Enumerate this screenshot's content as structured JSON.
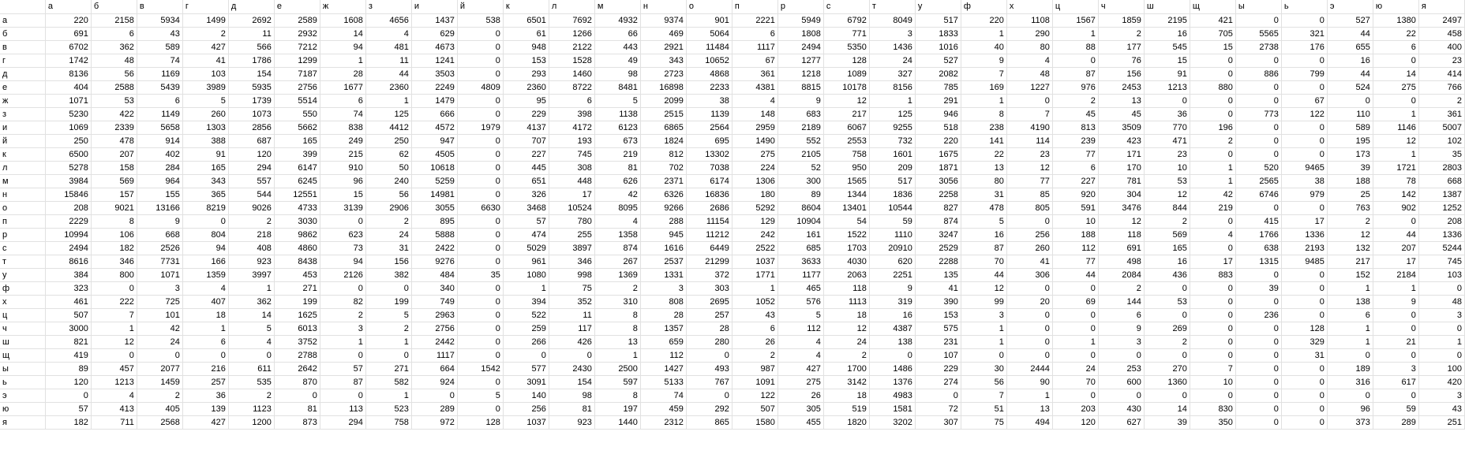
{
  "sheet": {
    "columns": [
      "а",
      "б",
      "в",
      "г",
      "д",
      "е",
      "ж",
      "з",
      "и",
      "й",
      "к",
      "л",
      "м",
      "н",
      "о",
      "п",
      "р",
      "с",
      "т",
      "у",
      "ф",
      "х",
      "ц",
      "ч",
      "ш",
      "щ",
      "ы",
      "ь",
      "э",
      "ю",
      "я"
    ],
    "rows": [
      {
        "label": "а",
        "values": [
          "220",
          "2158",
          "5934",
          "1499",
          "2692",
          "2589",
          "1608",
          "4656",
          "1437",
          "538",
          "6501",
          "7692",
          "4932",
          "9374",
          "901",
          "2221",
          "5949",
          "6792",
          "8049",
          "517",
          "220",
          "1108",
          "1567",
          "1859",
          "2195",
          "421",
          "0",
          "0",
          "527",
          "1380",
          "2497"
        ]
      },
      {
        "label": "б",
        "values": [
          "691",
          "6",
          "43",
          "2",
          "11",
          "2932",
          "14",
          "4",
          "629",
          "0",
          "61",
          "1266",
          "66",
          "469",
          "5064",
          "6",
          "1808",
          "771",
          "3",
          "1833",
          "1",
          "290",
          "1",
          "2",
          "16",
          "705",
          "5565",
          "321",
          "44",
          "22",
          "458"
        ]
      },
      {
        "label": "в",
        "values": [
          "6702",
          "362",
          "589",
          "427",
          "566",
          "7212",
          "94",
          "481",
          "4673",
          "0",
          "948",
          "2122",
          "443",
          "2921",
          "11484",
          "1117",
          "2494",
          "5350",
          "1436",
          "1016",
          "40",
          "80",
          "88",
          "177",
          "545",
          "15",
          "2738",
          "176",
          "655",
          "6",
          "400"
        ]
      },
      {
        "label": "г",
        "values": [
          "1742",
          "48",
          "74",
          "41",
          "1786",
          "1299",
          "1",
          "11",
          "1241",
          "0",
          "153",
          "1528",
          "49",
          "343",
          "10652",
          "67",
          "1277",
          "128",
          "24",
          "527",
          "9",
          "4",
          "0",
          "76",
          "15",
          "0",
          "0",
          "0",
          "16",
          "0",
          "23"
        ]
      },
      {
        "label": "д",
        "values": [
          "8136",
          "56",
          "1169",
          "103",
          "154",
          "7187",
          "28",
          "44",
          "3503",
          "0",
          "293",
          "1460",
          "98",
          "2723",
          "4868",
          "361",
          "1218",
          "1089",
          "327",
          "2082",
          "7",
          "48",
          "87",
          "156",
          "91",
          "0",
          "886",
          "799",
          "44",
          "14",
          "414"
        ]
      },
      {
        "label": "е",
        "values": [
          "404",
          "2588",
          "5439",
          "3989",
          "5935",
          "2756",
          "1677",
          "2360",
          "2249",
          "4809",
          "2360",
          "8722",
          "8481",
          "16898",
          "2233",
          "4381",
          "8815",
          "10178",
          "8156",
          "785",
          "169",
          "1227",
          "976",
          "2453",
          "1213",
          "880",
          "0",
          "0",
          "524",
          "275",
          "766"
        ]
      },
      {
        "label": "ж",
        "values": [
          "1071",
          "53",
          "6",
          "5",
          "1739",
          "5514",
          "6",
          "1",
          "1479",
          "0",
          "95",
          "6",
          "5",
          "2099",
          "38",
          "4",
          "9",
          "12",
          "1",
          "291",
          "1",
          "0",
          "2",
          "13",
          "0",
          "0",
          "0",
          "67",
          "0",
          "0",
          "2"
        ]
      },
      {
        "label": "з",
        "values": [
          "5230",
          "422",
          "1149",
          "260",
          "1073",
          "550",
          "74",
          "125",
          "666",
          "0",
          "229",
          "398",
          "1138",
          "2515",
          "1139",
          "148",
          "683",
          "217",
          "125",
          "946",
          "8",
          "7",
          "45",
          "45",
          "36",
          "0",
          "773",
          "122",
          "110",
          "1",
          "361"
        ]
      },
      {
        "label": "и",
        "values": [
          "1069",
          "2339",
          "5658",
          "1303",
          "2856",
          "5662",
          "838",
          "4412",
          "4572",
          "1979",
          "4137",
          "4172",
          "6123",
          "6865",
          "2564",
          "2959",
          "2189",
          "6067",
          "9255",
          "518",
          "238",
          "4190",
          "813",
          "3509",
          "770",
          "196",
          "0",
          "0",
          "589",
          "1146",
          "5007"
        ]
      },
      {
        "label": "й",
        "values": [
          "250",
          "478",
          "914",
          "388",
          "687",
          "165",
          "249",
          "250",
          "947",
          "0",
          "707",
          "193",
          "673",
          "1824",
          "695",
          "1490",
          "552",
          "2553",
          "732",
          "220",
          "141",
          "114",
          "239",
          "423",
          "471",
          "2",
          "0",
          "0",
          "195",
          "12",
          "102"
        ]
      },
      {
        "label": "к",
        "values": [
          "6500",
          "207",
          "402",
          "91",
          "120",
          "399",
          "215",
          "62",
          "4505",
          "0",
          "227",
          "745",
          "219",
          "812",
          "13302",
          "275",
          "2105",
          "758",
          "1601",
          "1675",
          "22",
          "23",
          "77",
          "171",
          "23",
          "0",
          "0",
          "0",
          "173",
          "1",
          "35"
        ]
      },
      {
        "label": "л",
        "values": [
          "5278",
          "158",
          "284",
          "165",
          "294",
          "6147",
          "910",
          "50",
          "10618",
          "0",
          "445",
          "308",
          "81",
          "702",
          "7038",
          "224",
          "52",
          "950",
          "209",
          "1871",
          "13",
          "12",
          "6",
          "170",
          "10",
          "1",
          "520",
          "9465",
          "39",
          "1721",
          "2803"
        ]
      },
      {
        "label": "м",
        "values": [
          "3984",
          "569",
          "964",
          "343",
          "557",
          "6245",
          "96",
          "240",
          "5259",
          "0",
          "651",
          "448",
          "626",
          "2371",
          "6174",
          "1306",
          "300",
          "1565",
          "517",
          "3056",
          "80",
          "77",
          "227",
          "781",
          "53",
          "1",
          "2565",
          "38",
          "188",
          "78",
          "668"
        ]
      },
      {
        "label": "н",
        "values": [
          "15846",
          "157",
          "155",
          "365",
          "544",
          "12551",
          "15",
          "56",
          "14981",
          "0",
          "326",
          "17",
          "42",
          "6326",
          "16836",
          "180",
          "89",
          "1344",
          "1836",
          "2258",
          "31",
          "85",
          "920",
          "304",
          "12",
          "42",
          "6746",
          "979",
          "25",
          "142",
          "1387"
        ]
      },
      {
        "label": "о",
        "values": [
          "208",
          "9021",
          "13166",
          "8219",
          "9026",
          "4733",
          "3139",
          "2906",
          "3055",
          "6630",
          "3468",
          "10524",
          "8095",
          "9266",
          "2686",
          "5292",
          "8604",
          "13401",
          "10544",
          "827",
          "478",
          "805",
          "591",
          "3476",
          "844",
          "219",
          "0",
          "0",
          "763",
          "902",
          "1252"
        ]
      },
      {
        "label": "п",
        "values": [
          "2229",
          "8",
          "9",
          "0",
          "2",
          "3030",
          "0",
          "2",
          "895",
          "0",
          "57",
          "780",
          "4",
          "288",
          "11154",
          "129",
          "10904",
          "54",
          "59",
          "874",
          "5",
          "0",
          "10",
          "12",
          "2",
          "0",
          "415",
          "17",
          "2",
          "0",
          "208"
        ]
      },
      {
        "label": "р",
        "values": [
          "10994",
          "106",
          "668",
          "804",
          "218",
          "9862",
          "623",
          "24",
          "5888",
          "0",
          "474",
          "255",
          "1358",
          "945",
          "11212",
          "242",
          "161",
          "1522",
          "1110",
          "3247",
          "16",
          "256",
          "188",
          "118",
          "569",
          "4",
          "1766",
          "1336",
          "12",
          "44",
          "1336"
        ]
      },
      {
        "label": "с",
        "values": [
          "2494",
          "182",
          "2526",
          "94",
          "408",
          "4860",
          "73",
          "31",
          "2422",
          "0",
          "5029",
          "3897",
          "874",
          "1616",
          "6449",
          "2522",
          "685",
          "1703",
          "20910",
          "2529",
          "87",
          "260",
          "112",
          "691",
          "165",
          "0",
          "638",
          "2193",
          "132",
          "207",
          "5244"
        ]
      },
      {
        "label": "т",
        "values": [
          "8616",
          "346",
          "7731",
          "166",
          "923",
          "8438",
          "94",
          "156",
          "9276",
          "0",
          "961",
          "346",
          "267",
          "2537",
          "21299",
          "1037",
          "3633",
          "4030",
          "620",
          "2288",
          "70",
          "41",
          "77",
          "498",
          "16",
          "17",
          "1315",
          "9485",
          "217",
          "17",
          "745"
        ]
      },
      {
        "label": "у",
        "values": [
          "384",
          "800",
          "1071",
          "1359",
          "3997",
          "453",
          "2126",
          "382",
          "484",
          "35",
          "1080",
          "998",
          "1369",
          "1331",
          "372",
          "1771",
          "1177",
          "2063",
          "2251",
          "135",
          "44",
          "306",
          "44",
          "2084",
          "436",
          "883",
          "0",
          "0",
          "152",
          "2184",
          "103"
        ]
      },
      {
        "label": "ф",
        "values": [
          "323",
          "0",
          "3",
          "4",
          "1",
          "271",
          "0",
          "0",
          "340",
          "0",
          "1",
          "75",
          "2",
          "3",
          "303",
          "1",
          "465",
          "118",
          "9",
          "41",
          "12",
          "0",
          "0",
          "2",
          "0",
          "0",
          "39",
          "0",
          "1",
          "1",
          "0"
        ]
      },
      {
        "label": "х",
        "values": [
          "461",
          "222",
          "725",
          "407",
          "362",
          "199",
          "82",
          "199",
          "749",
          "0",
          "394",
          "352",
          "310",
          "808",
          "2695",
          "1052",
          "576",
          "1113",
          "319",
          "390",
          "99",
          "20",
          "69",
          "144",
          "53",
          "0",
          "0",
          "0",
          "138",
          "9",
          "48"
        ]
      },
      {
        "label": "ц",
        "values": [
          "507",
          "7",
          "101",
          "18",
          "14",
          "1625",
          "2",
          "5",
          "2963",
          "0",
          "522",
          "11",
          "8",
          "28",
          "257",
          "43",
          "5",
          "18",
          "16",
          "153",
          "3",
          "0",
          "0",
          "6",
          "0",
          "0",
          "236",
          "0",
          "6",
          "0",
          "3"
        ]
      },
      {
        "label": "ч",
        "values": [
          "3000",
          "1",
          "42",
          "1",
          "5",
          "6013",
          "3",
          "2",
          "2756",
          "0",
          "259",
          "117",
          "8",
          "1357",
          "28",
          "6",
          "112",
          "12",
          "4387",
          "575",
          "1",
          "0",
          "0",
          "9",
          "269",
          "0",
          "0",
          "128",
          "1",
          "0",
          "0"
        ]
      },
      {
        "label": "ш",
        "values": [
          "821",
          "12",
          "24",
          "6",
          "4",
          "3752",
          "1",
          "1",
          "2442",
          "0",
          "266",
          "426",
          "13",
          "659",
          "280",
          "26",
          "4",
          "24",
          "138",
          "231",
          "1",
          "0",
          "1",
          "3",
          "2",
          "0",
          "0",
          "329",
          "1",
          "21",
          "1"
        ]
      },
      {
        "label": "щ",
        "values": [
          "419",
          "0",
          "0",
          "0",
          "0",
          "2788",
          "0",
          "0",
          "1117",
          "0",
          "0",
          "0",
          "1",
          "112",
          "0",
          "2",
          "4",
          "2",
          "0",
          "107",
          "0",
          "0",
          "0",
          "0",
          "0",
          "0",
          "0",
          "31",
          "0",
          "0",
          "0"
        ]
      },
      {
        "label": "ы",
        "values": [
          "89",
          "457",
          "2077",
          "216",
          "611",
          "2642",
          "57",
          "271",
          "664",
          "1542",
          "577",
          "2430",
          "2500",
          "1427",
          "493",
          "987",
          "427",
          "1700",
          "1486",
          "229",
          "30",
          "2444",
          "24",
          "253",
          "270",
          "7",
          "0",
          "0",
          "189",
          "3",
          "100"
        ]
      },
      {
        "label": "ь",
        "values": [
          "120",
          "1213",
          "1459",
          "257",
          "535",
          "870",
          "87",
          "582",
          "924",
          "0",
          "3091",
          "154",
          "597",
          "5133",
          "767",
          "1091",
          "275",
          "3142",
          "1376",
          "274",
          "56",
          "90",
          "70",
          "600",
          "1360",
          "10",
          "0",
          "0",
          "316",
          "617",
          "420"
        ]
      },
      {
        "label": "э",
        "values": [
          "0",
          "4",
          "2",
          "36",
          "2",
          "0",
          "0",
          "1",
          "0",
          "5",
          "140",
          "98",
          "8",
          "74",
          "0",
          "122",
          "26",
          "18",
          "4983",
          "0",
          "7",
          "1",
          "0",
          "0",
          "0",
          "0",
          "0",
          "0",
          "0",
          "0",
          "3"
        ]
      },
      {
        "label": "ю",
        "values": [
          "57",
          "413",
          "405",
          "139",
          "1123",
          "81",
          "113",
          "523",
          "289",
          "0",
          "256",
          "81",
          "197",
          "459",
          "292",
          "507",
          "305",
          "519",
          "1581",
          "72",
          "51",
          "13",
          "203",
          "430",
          "14",
          "830",
          "0",
          "0",
          "96",
          "59",
          "43"
        ]
      },
      {
        "label": "я",
        "values": [
          "182",
          "711",
          "2568",
          "427",
          "1200",
          "873",
          "294",
          "758",
          "972",
          "128",
          "1037",
          "923",
          "1440",
          "2312",
          "865",
          "1580",
          "455",
          "1820",
          "3202",
          "307",
          "75",
          "494",
          "120",
          "627",
          "39",
          "350",
          "0",
          "0",
          "373",
          "289",
          "251"
        ]
      }
    ]
  }
}
